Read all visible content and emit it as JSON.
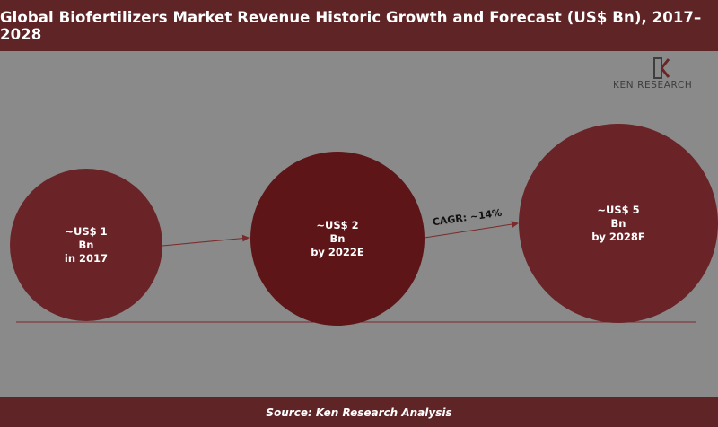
{
  "title": "Global Biofertilizers Market Revenue Historic Growth and Forecast (US$ Bn), 2017–2028",
  "source": "Source: Ken Research Analysis",
  "logo": {
    "text": "KEN RESEARCH",
    "icon": "ken-research-logo-icon"
  },
  "colors": {
    "header": "#5e2426",
    "background": "#8a8a8a",
    "bubble_muted": "#6a2427",
    "bubble_dark": "#5e1517",
    "connector": "#7a2a2c"
  },
  "chart_data": {
    "type": "bubble",
    "points": [
      {
        "label": "in 2017",
        "value": 1,
        "value_text": "~US$ 1",
        "unit": "Bn",
        "period": "in 2017"
      },
      {
        "label": "by 2022E",
        "value": 2,
        "value_text": "~US$ 2",
        "unit": "Bn",
        "period": "by 2022E"
      },
      {
        "label": "by 2028F",
        "value": 5,
        "value_text": "~US$ 5",
        "unit": "Bn",
        "period": "by 2028F"
      }
    ],
    "annotations": [
      {
        "text": "CAGR: ~14%",
        "between": [
          "by 2022E",
          "by 2028F"
        ]
      }
    ]
  }
}
